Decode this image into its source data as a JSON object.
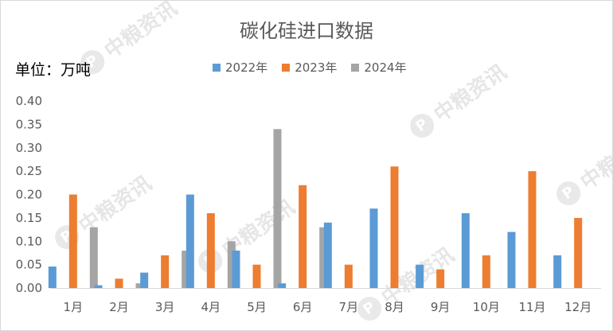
{
  "chart_data": {
    "type": "bar",
    "title": "碳化硅进口数据",
    "unit_label": "单位：万吨",
    "categories": [
      "1月",
      "2月",
      "3月",
      "4月",
      "5月",
      "6月",
      "7月",
      "8月",
      "9月",
      "10月",
      "11月",
      "12月"
    ],
    "series": [
      {
        "name": "2022年",
        "color": "#5b9bd5",
        "values": [
          0.046,
          0.006,
          0.033,
          0.2,
          0.08,
          0.01,
          0.14,
          0.17,
          0.05,
          0.16,
          0.12,
          0.07
        ]
      },
      {
        "name": "2023年",
        "color": "#ed7d31",
        "values": [
          0.2,
          0.02,
          0.07,
          0.16,
          0.05,
          0.22,
          0.05,
          0.26,
          0.04,
          0.07,
          0.25,
          0.15
        ]
      },
      {
        "name": "2024年",
        "color": "#a5a5a5",
        "values": [
          0.13,
          0.01,
          0.08,
          0.1,
          0.34,
          0.13,
          null,
          null,
          null,
          null,
          null,
          null
        ]
      }
    ],
    "y_ticks": [
      "0.00",
      "0.05",
      "0.10",
      "0.15",
      "0.20",
      "0.25",
      "0.30",
      "0.35",
      "0.40"
    ],
    "ylim": [
      0,
      0.4
    ],
    "grid": false,
    "legend_position": "top"
  },
  "watermark": {
    "text": "中粮资讯",
    "logo": "P"
  }
}
